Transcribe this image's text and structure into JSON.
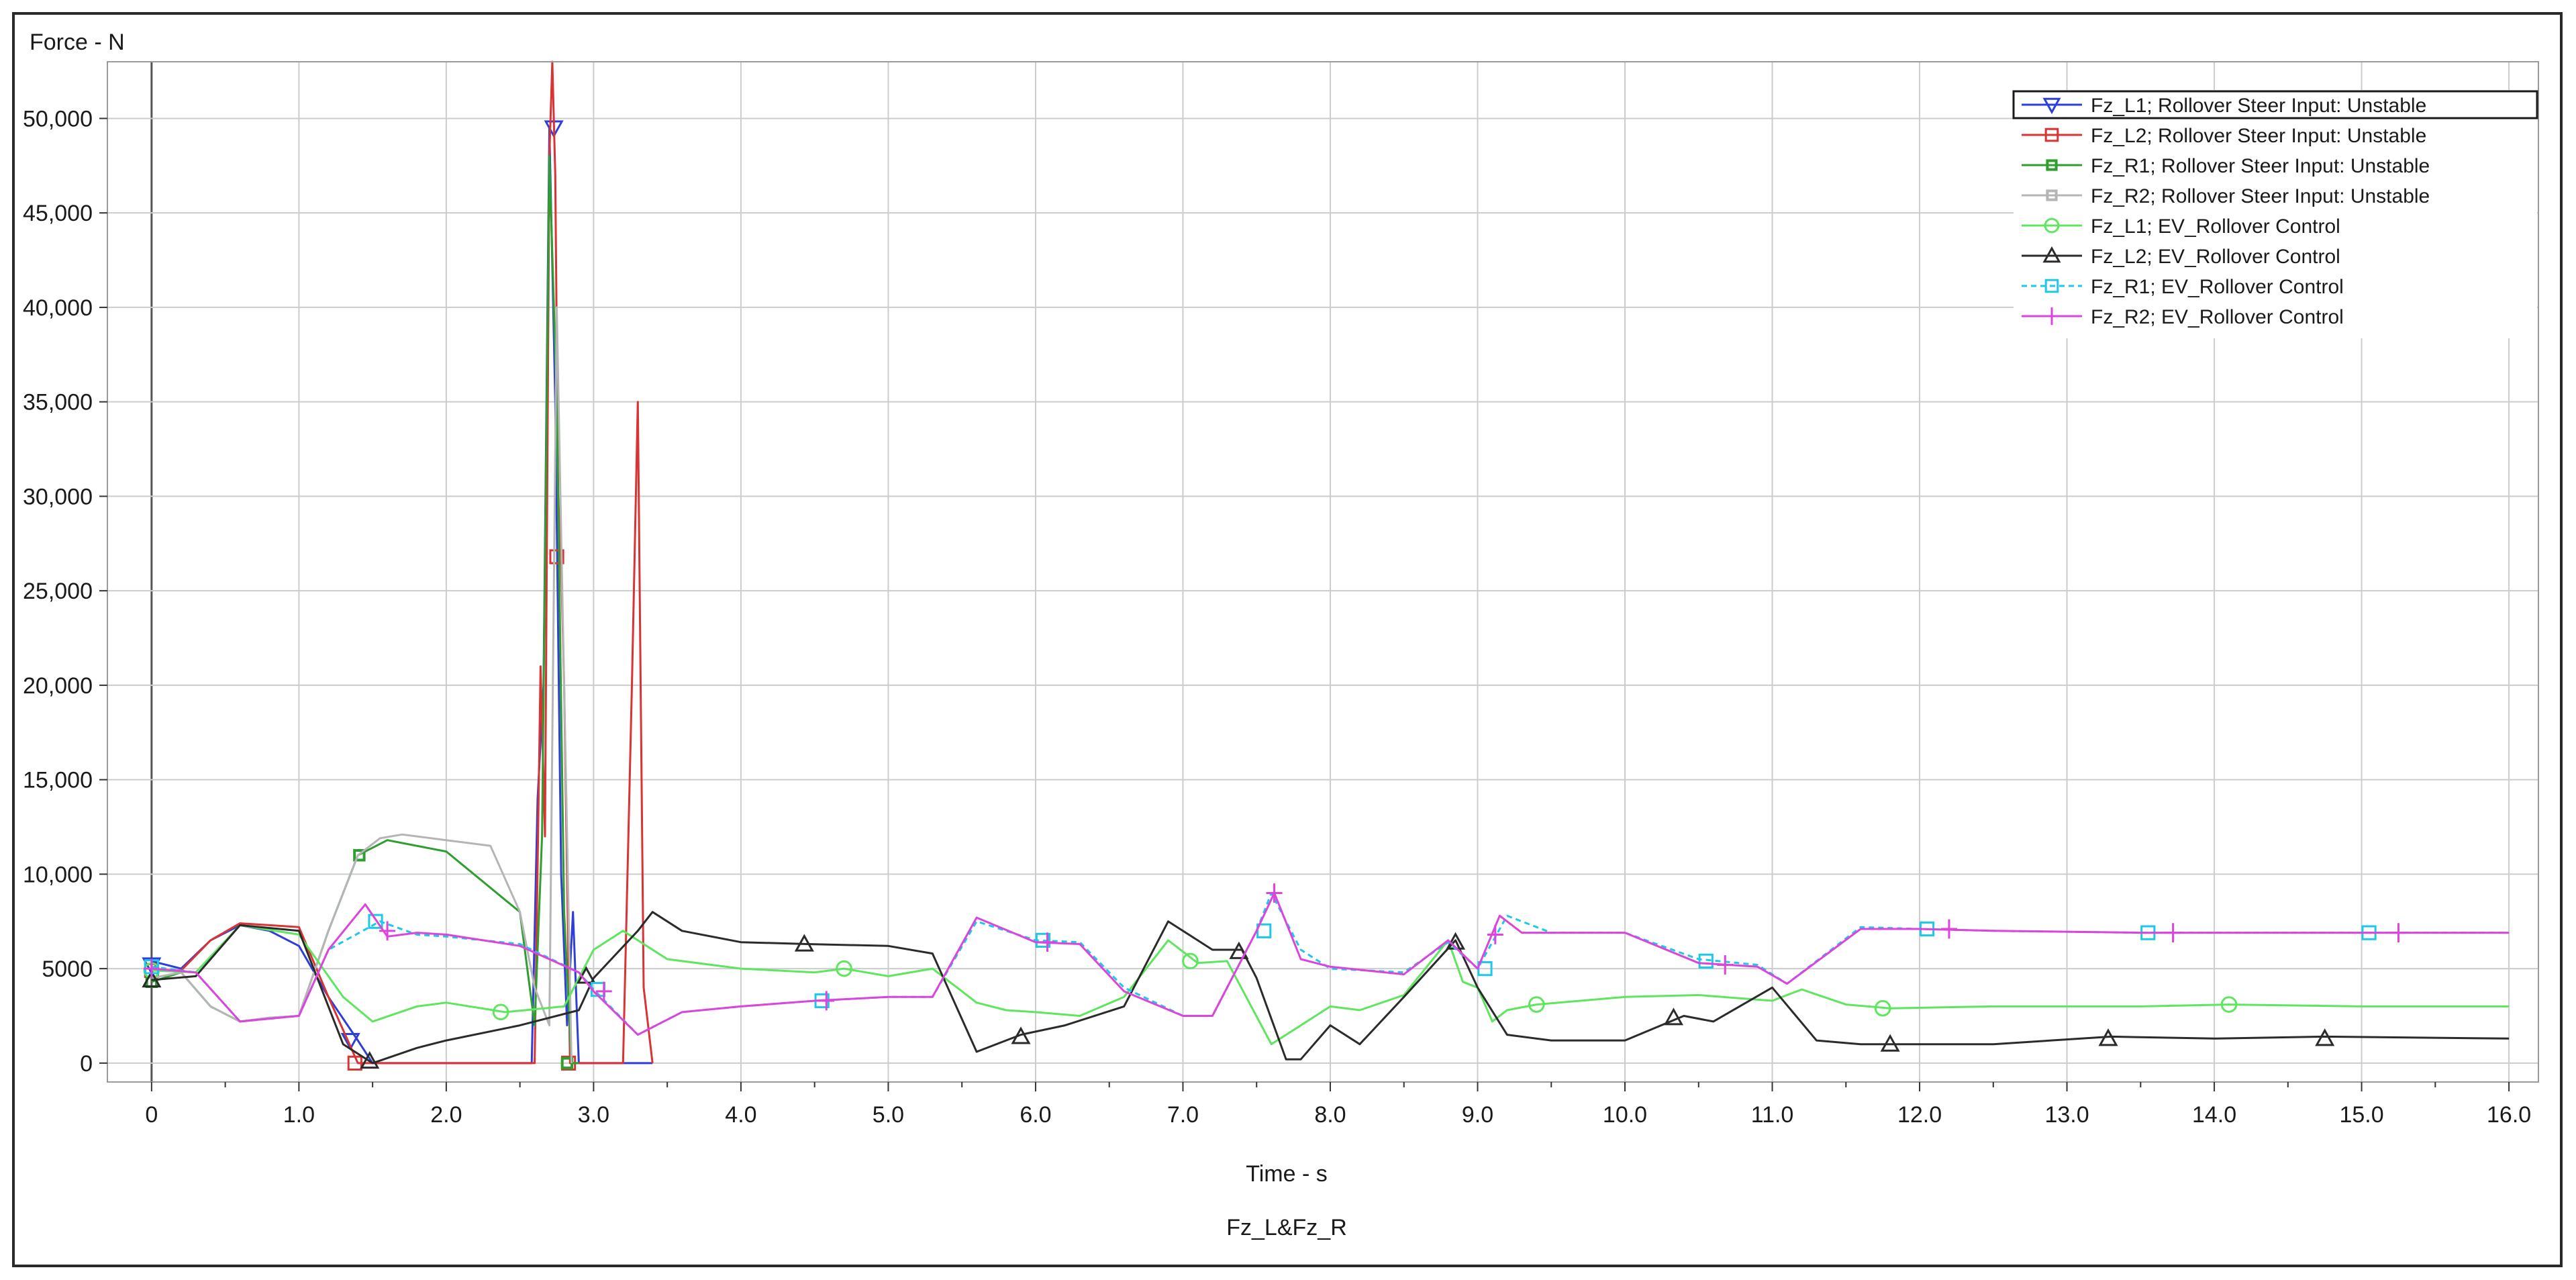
{
  "chart_data": {
    "type": "line",
    "title": "Fz_L&Fz_R",
    "xlabel": "Time - s",
    "ylabel": "Force - N",
    "xlim": [
      -0.3,
      16.2
    ],
    "ylim": [
      -1000,
      53000
    ],
    "x_ticks": [
      0,
      1,
      2,
      3,
      4,
      5,
      6,
      7,
      8,
      9,
      10,
      11,
      12,
      13,
      14,
      15,
      16
    ],
    "x_tick_labels": [
      "0",
      "1.0",
      "2.0",
      "3.0",
      "4.0",
      "5.0",
      "6.0",
      "7.0",
      "8.0",
      "9.0",
      "10.0",
      "11.0",
      "12.0",
      "13.0",
      "14.0",
      "15.0",
      "16.0"
    ],
    "y_ticks": [
      0,
      5000,
      10000,
      15000,
      20000,
      25000,
      30000,
      35000,
      40000,
      45000,
      50000
    ],
    "y_tick_labels": [
      "0",
      "5000",
      "10,000",
      "15,000",
      "20,000",
      "25,000",
      "30,000",
      "35,000",
      "40,000",
      "45,000",
      "50,000"
    ],
    "grid": true,
    "legend_position": "top-right",
    "colors": {
      "grid": "#cccccc",
      "zero_line": "#555555"
    },
    "series": [
      {
        "name": "Fz_L1; Rollover Steer Input: Unstable",
        "color": "#2e3fd9",
        "marker": "triangle-down",
        "dash": "",
        "x": [
          0,
          0.2,
          0.4,
          0.6,
          0.8,
          1.0,
          1.2,
          1.4,
          1.5,
          2.0,
          2.5,
          2.58,
          2.62,
          2.66,
          2.7,
          2.74,
          2.78,
          2.82,
          2.86,
          2.9,
          3.4
        ],
        "values": [
          5400,
          5000,
          6500,
          7300,
          7000,
          6200,
          3500,
          1200,
          0,
          0,
          0,
          0,
          14000,
          20000,
          49500,
          35000,
          10000,
          2000,
          8000,
          0,
          0
        ],
        "marker_x": [
          0,
          1.35,
          2.73
        ],
        "marker_y": [
          5200,
          1200,
          49500
        ]
      },
      {
        "name": "Fz_L2; Rollover Steer Input: Unstable",
        "color": "#d93333",
        "marker": "square",
        "dash": "",
        "x": [
          0,
          0.2,
          0.4,
          0.6,
          0.8,
          1.0,
          1.2,
          1.4,
          1.6,
          2.0,
          2.6,
          2.64,
          2.67,
          2.7,
          2.72,
          2.74,
          2.76,
          2.78,
          2.8,
          2.84,
          3.2,
          3.26,
          3.3,
          3.34,
          3.4
        ],
        "values": [
          4900,
          4900,
          6500,
          7400,
          7300,
          7200,
          3500,
          0,
          0,
          0,
          0,
          21000,
          12000,
          48000,
          53000,
          47000,
          30000,
          26500,
          20000,
          0,
          0,
          20000,
          35000,
          4000,
          0
        ],
        "marker_x": [
          0,
          1.38,
          2.75,
          2.83
        ],
        "marker_y": [
          4900,
          0,
          26800,
          0
        ]
      },
      {
        "name": "Fz_R1; Rollover Steer Input: Unstable",
        "color": "#2e9e2e",
        "marker": "square-small",
        "dash": "",
        "x": [
          0,
          0.2,
          0.4,
          0.6,
          0.8,
          1.0,
          1.2,
          1.4,
          1.6,
          2.0,
          2.5,
          2.55,
          2.6,
          2.65,
          2.7,
          2.75,
          2.8,
          2.85,
          2.9
        ],
        "values": [
          4300,
          4800,
          3000,
          2200,
          2400,
          2500,
          7000,
          11000,
          11800,
          11200,
          8000,
          5000,
          2000,
          12000,
          48000,
          35000,
          8000,
          0,
          0
        ],
        "marker_x": [
          0,
          1.41,
          2.82
        ],
        "marker_y": [
          4300,
          11000,
          0
        ]
      },
      {
        "name": "Fz_R2; Rollover Steer Input: Unstable",
        "color": "#b5b5b5",
        "marker": "square-small",
        "dash": "",
        "x": [
          0,
          0.2,
          0.4,
          0.6,
          0.8,
          1.0,
          1.2,
          1.4,
          1.55,
          1.7,
          2.0,
          2.3,
          2.5,
          2.6,
          2.7,
          2.75,
          2.8,
          2.85
        ],
        "values": [
          4500,
          4800,
          3000,
          2200,
          2400,
          2500,
          7000,
          11000,
          11900,
          12100,
          11800,
          11500,
          8000,
          4000,
          2000,
          40000,
          20000,
          0
        ],
        "marker_x": [],
        "marker_y": []
      },
      {
        "name": "Fz_L1; EV_Rollover Control",
        "color": "#5ee65e",
        "marker": "circle",
        "dash": "",
        "x": [
          0,
          0.3,
          0.6,
          1.0,
          1.3,
          1.5,
          1.8,
          2.0,
          2.4,
          2.8,
          3.0,
          3.2,
          3.5,
          4.0,
          4.5,
          4.7,
          5.0,
          5.3,
          5.6,
          5.8,
          6.0,
          6.3,
          6.6,
          6.9,
          7.1,
          7.3,
          7.6,
          7.8,
          8.0,
          8.2,
          8.5,
          8.8,
          8.9,
          9.0,
          9.1,
          9.2,
          9.4,
          10.0,
          10.5,
          11.0,
          11.2,
          11.5,
          11.8,
          12.5,
          13.5,
          14.1,
          15.0,
          16.0
        ],
        "values": [
          4900,
          4800,
          7300,
          6800,
          3500,
          2200,
          3000,
          3200,
          2700,
          3000,
          6000,
          7000,
          5500,
          5000,
          4800,
          5000,
          4600,
          5000,
          3200,
          2800,
          2700,
          2500,
          3500,
          6500,
          5300,
          5400,
          1000,
          2000,
          3000,
          2800,
          3600,
          6500,
          4300,
          4000,
          2200,
          2800,
          3100,
          3500,
          3600,
          3300,
          3900,
          3100,
          2900,
          3000,
          3000,
          3100,
          3000,
          3000
        ],
        "marker_x": [
          0,
          2.37,
          4.7,
          7.05,
          9.4,
          11.75,
          14.1
        ],
        "marker_y": [
          4900,
          2700,
          5000,
          5400,
          3100,
          2900,
          3100
        ]
      },
      {
        "name": "Fz_L2; EV_Rollover Control",
        "color": "#2b2b2b",
        "marker": "triangle",
        "dash": "",
        "x": [
          0,
          0.3,
          0.6,
          1.0,
          1.3,
          1.5,
          1.8,
          2.0,
          2.5,
          2.9,
          3.0,
          3.3,
          3.4,
          3.6,
          4.0,
          4.45,
          5.0,
          5.3,
          5.6,
          5.9,
          6.2,
          6.6,
          6.9,
          7.2,
          7.4,
          7.5,
          7.7,
          7.8,
          8.0,
          8.2,
          8.5,
          8.85,
          9.0,
          9.2,
          9.5,
          10.0,
          10.4,
          10.6,
          11.0,
          11.3,
          11.6,
          11.8,
          12.5,
          13.3,
          14.0,
          14.75,
          16.0
        ],
        "values": [
          4400,
          4600,
          7300,
          7000,
          1000,
          0,
          800,
          1200,
          2000,
          2800,
          4500,
          7000,
          8000,
          7000,
          6400,
          6300,
          6200,
          5800,
          600,
          1500,
          2000,
          3000,
          7500,
          6000,
          6000,
          4500,
          200,
          200,
          2000,
          1000,
          3500,
          6500,
          4000,
          1500,
          1200,
          1200,
          2500,
          2200,
          4000,
          1200,
          1000,
          1000,
          1000,
          1400,
          1300,
          1400,
          1300
        ],
        "marker_x": [
          0,
          1.48,
          2.95,
          4.43,
          5.9,
          7.38,
          8.85,
          10.33,
          11.8,
          13.28,
          14.75
        ],
        "marker_y": [
          4400,
          100,
          4600,
          6300,
          1400,
          5900,
          6400,
          2400,
          1000,
          1300,
          1300
        ]
      },
      {
        "name": "Fz_R1; EV_Rollover Control",
        "color": "#1ec8e8",
        "marker": "square",
        "dash": "8 6",
        "x": [
          0,
          0.3,
          0.6,
          1.0,
          1.2,
          1.55,
          1.8,
          2.0,
          2.5,
          2.9,
          3.0,
          3.3,
          3.6,
          4.0,
          4.5,
          5.0,
          5.3,
          5.6,
          6.0,
          6.3,
          6.6,
          7.0,
          7.2,
          7.5,
          7.6,
          7.8,
          8.0,
          8.5,
          8.8,
          9.0,
          9.2,
          9.5,
          10.0,
          10.5,
          10.9,
          11.1,
          11.6,
          12.0,
          12.5,
          13.5,
          15.0,
          16.0
        ],
        "values": [
          5100,
          4800,
          2200,
          2500,
          6000,
          7500,
          6800,
          6700,
          6300,
          4800,
          3900,
          1500,
          2700,
          3000,
          3300,
          3500,
          3500,
          7500,
          6500,
          6400,
          4000,
          2500,
          2500,
          7000,
          9000,
          6000,
          5000,
          4800,
          6400,
          5000,
          7800,
          6900,
          6900,
          5500,
          5200,
          4200,
          7200,
          7100,
          7000,
          6900,
          6900,
          6900
        ],
        "marker_x": [
          0,
          1.52,
          3.03,
          4.55,
          6.05,
          7.55,
          9.05,
          10.55,
          12.05,
          13.55,
          15.05
        ],
        "marker_y": [
          5100,
          7500,
          3900,
          3300,
          6500,
          7000,
          5000,
          5400,
          7100,
          6900,
          6900
        ]
      },
      {
        "name": "Fz_R2; EV_Rollover Control",
        "color": "#dd44dd",
        "marker": "plus",
        "dash": "",
        "x": [
          0,
          0.3,
          0.6,
          1.0,
          1.2,
          1.45,
          1.6,
          1.8,
          2.0,
          2.5,
          2.9,
          3.0,
          3.3,
          3.6,
          4.0,
          4.5,
          5.0,
          5.3,
          5.6,
          6.0,
          6.3,
          6.6,
          7.0,
          7.2,
          7.5,
          7.62,
          7.8,
          8.0,
          8.5,
          8.8,
          9.0,
          9.15,
          9.3,
          10.0,
          10.5,
          10.9,
          11.1,
          11.6,
          12.0,
          12.5,
          13.5,
          15.0,
          16.0
        ],
        "values": [
          5000,
          4800,
          2200,
          2500,
          6000,
          8400,
          6700,
          6900,
          6800,
          6200,
          4800,
          3800,
          1500,
          2700,
          3000,
          3300,
          3500,
          3500,
          7700,
          6400,
          6300,
          3800,
          2500,
          2500,
          7000,
          9000,
          5500,
          5100,
          4700,
          6500,
          5000,
          7800,
          6900,
          6900,
          5300,
          5100,
          4200,
          7100,
          7100,
          7000,
          6900,
          6900,
          6900
        ],
        "marker_x": [
          0,
          1.6,
          3.07,
          4.58,
          6.08,
          7.62,
          9.12,
          10.68,
          12.2,
          13.72,
          15.25
        ],
        "marker_y": [
          5000,
          7000,
          3800,
          3300,
          6400,
          9000,
          6800,
          5200,
          7100,
          6900,
          6900
        ]
      }
    ]
  }
}
